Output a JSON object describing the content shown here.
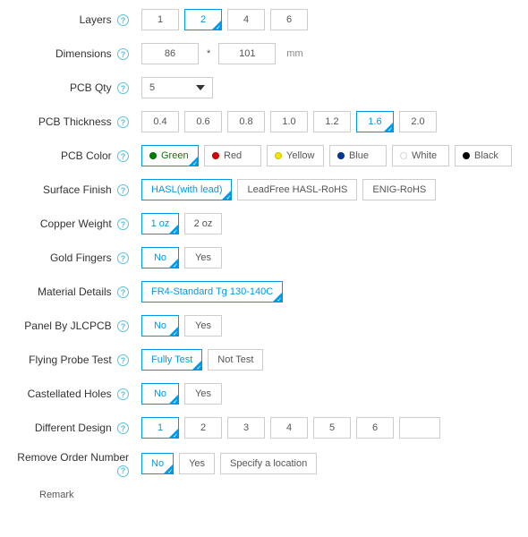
{
  "colors": {
    "accent": "#0099e5",
    "border": "#cccccc",
    "text": "#333333",
    "help": "#5bc0de"
  },
  "labels": {
    "layers": "Layers",
    "dimensions": "Dimensions",
    "pcb_qty": "PCB Qty",
    "pcb_thickness": "PCB Thickness",
    "pcb_color": "PCB Color",
    "surface_finish": "Surface Finish",
    "copper_weight": "Copper Weight",
    "gold_fingers": "Gold Fingers",
    "material_details": "Material Details",
    "panel_by_jlcpcb": "Panel By JLCPCB",
    "flying_probe_test": "Flying Probe Test",
    "castellated_holes": "Castellated Holes",
    "different_design": "Different Design",
    "remove_order_number": "Remove Order Number",
    "remark": "Remark"
  },
  "layers": {
    "options": [
      "1",
      "2",
      "4",
      "6"
    ],
    "selected": "2"
  },
  "dimensions": {
    "width": "86",
    "height": "101",
    "unit": "mm"
  },
  "pcb_qty": {
    "value": "5"
  },
  "thickness": {
    "options": [
      "0.4",
      "0.6",
      "0.8",
      "1.0",
      "1.2",
      "1.6",
      "2.0"
    ],
    "selected": "1.6"
  },
  "pcb_color": {
    "options": [
      {
        "label": "Green",
        "hex": "#008000"
      },
      {
        "label": "Red",
        "hex": "#d90000"
      },
      {
        "label": "Yellow",
        "hex": "#f5e400"
      },
      {
        "label": "Blue",
        "hex": "#003a99"
      },
      {
        "label": "White",
        "hex": "#ffffff"
      },
      {
        "label": "Black",
        "hex": "#000000"
      }
    ],
    "selected": "Green"
  },
  "surface_finish": {
    "options": [
      "HASL(with lead)",
      "LeadFree HASL-RoHS",
      "ENIG-RoHS"
    ],
    "selected": "HASL(with lead)"
  },
  "copper_weight": {
    "options": [
      "1 oz",
      "2 oz"
    ],
    "selected": "1 oz"
  },
  "gold_fingers": {
    "options": [
      "No",
      "Yes"
    ],
    "selected": "No"
  },
  "material_details": {
    "options": [
      "FR4-Standard Tg 130-140C"
    ],
    "selected": "FR4-Standard Tg 130-140C"
  },
  "panel_by_jlcpcb": {
    "options": [
      "No",
      "Yes"
    ],
    "selected": "No"
  },
  "flying_probe_test": {
    "options": [
      "Fully Test",
      "Not Test"
    ],
    "selected": "Fully Test"
  },
  "castellated_holes": {
    "options": [
      "No",
      "Yes"
    ],
    "selected": "No"
  },
  "different_design": {
    "options": [
      "1",
      "2",
      "3",
      "4",
      "5",
      "6"
    ],
    "selected": "1",
    "extra": ""
  },
  "remove_order_number": {
    "options": [
      "No",
      "Yes",
      "Specify a location"
    ],
    "selected": "No"
  }
}
